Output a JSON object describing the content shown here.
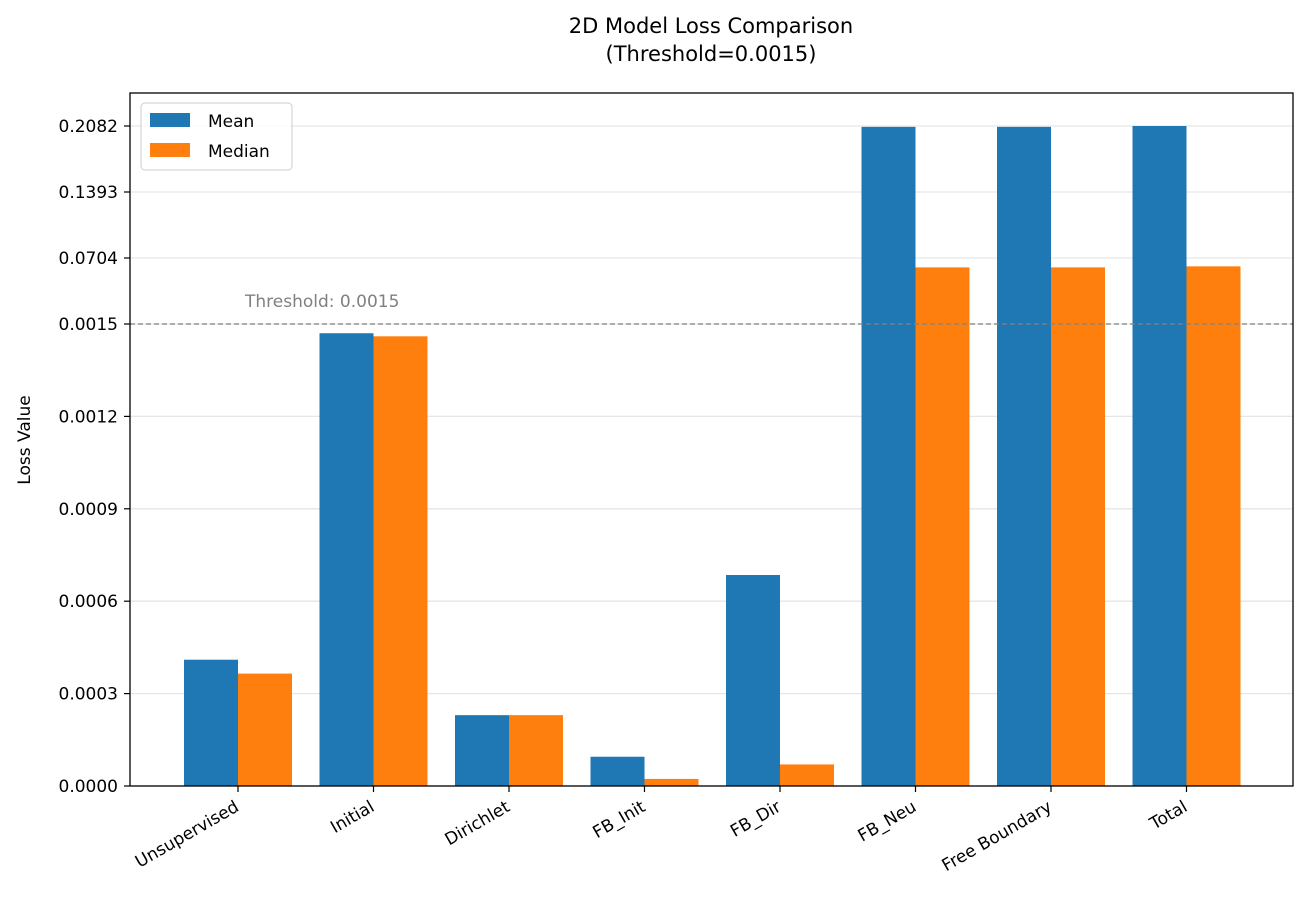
{
  "chart_data": {
    "type": "bar",
    "title_lines": [
      "2D Model Loss Comparison",
      "(Threshold=0.0015)"
    ],
    "xlabel": "",
    "ylabel": "Loss Value",
    "categories": [
      "Unsupervised",
      "Initial",
      "Dirichlet",
      "FB_Init",
      "FB_Dir",
      "FB_Neu",
      "Free Boundary",
      "Total"
    ],
    "series": [
      {
        "name": "Mean",
        "color": "#1f77b4",
        "values": [
          0.00041,
          0.00147,
          0.00023,
          9.5e-05,
          0.000685,
          0.2073,
          0.2073,
          0.2082
        ]
      },
      {
        "name": "Median",
        "color": "#ff7f0e",
        "values": [
          0.000365,
          0.00146,
          0.00023,
          2.3e-05,
          7e-05,
          0.0606,
          0.0606,
          0.0617
        ]
      }
    ],
    "y_scale": "piecewise: linear 0–0.0015, linear 0.0015–0.2082",
    "ylim": [
      0,
      0.2082
    ],
    "yticks": [
      "0.0000",
      "0.0003",
      "0.0006",
      "0.0009",
      "0.0012",
      "0.0015",
      "0.0704",
      "0.1393",
      "0.2082"
    ],
    "ytick_values": [
      0,
      0.0003,
      0.0006,
      0.0009,
      0.0012,
      0.0015,
      0.0704,
      0.1393,
      0.2082
    ],
    "threshold": {
      "value": 0.0015,
      "label": "Threshold: 0.0015",
      "color": "#808080"
    },
    "grid": "y-axis",
    "legend_position": "top-left"
  }
}
